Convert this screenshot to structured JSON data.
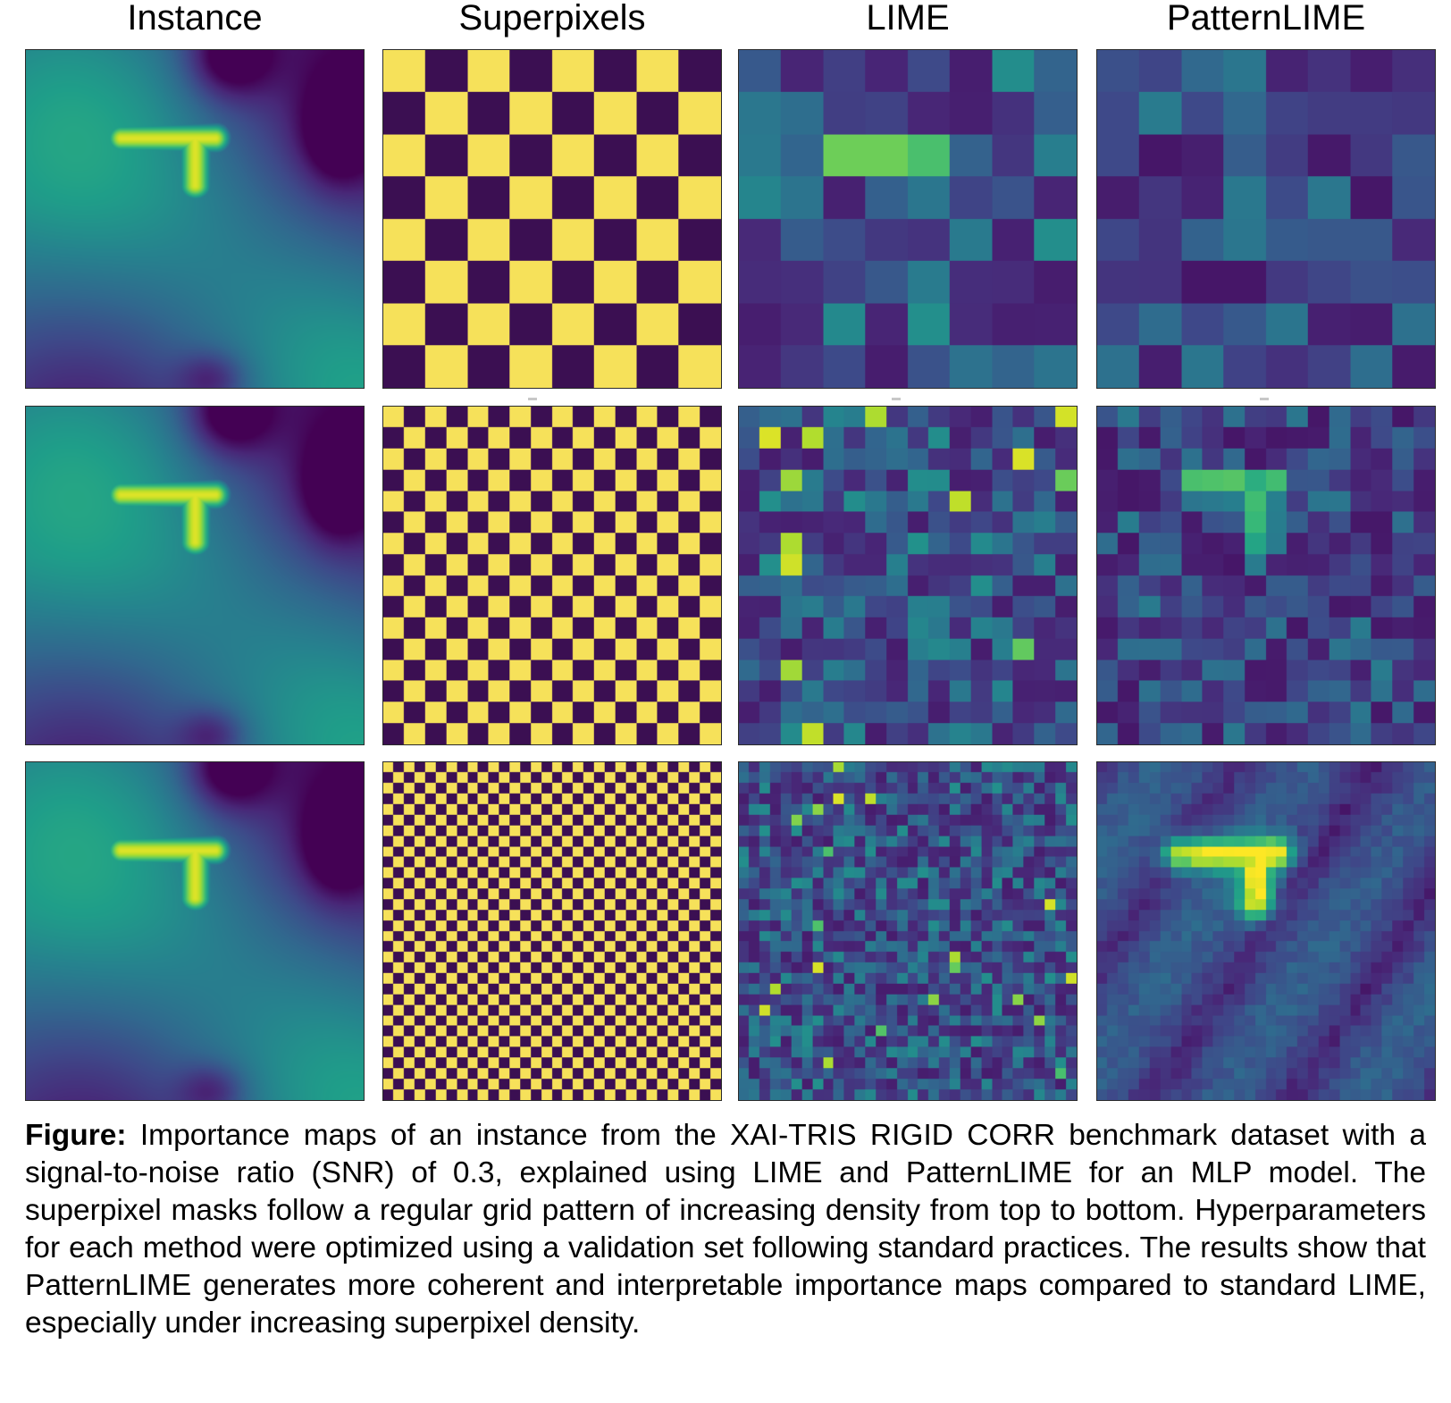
{
  "figure": {
    "column_headers": [
      "Instance",
      "Superpixels",
      "LIME",
      "PatternLIME"
    ],
    "rows": [
      {
        "superpixel_grid": 8,
        "lime_grid": 8,
        "patternlime_grid": 8
      },
      {
        "superpixel_grid": 16,
        "lime_grid": 16,
        "patternlime_grid": 16
      },
      {
        "superpixel_grid": 32,
        "lime_grid": 32,
        "patternlime_grid": 32
      }
    ],
    "colormap": "viridis"
  },
  "caption": {
    "label": "Figure:",
    "text": " Importance maps of an instance from the XAI-TRIS RIGID CORR benchmark dataset with a signal-to-noise ratio (SNR) of 0.3, explained using LIME and PatternLIME for an MLP model. The superpixel masks follow a regular grid pattern of increasing density from top to bottom. Hyperparameters for each method were optimized using a validation set following standard practices. The results show that PatternLIME generates more coherent and interpretable importance maps compared to standard LIME, especially under increasing superpixel density."
  }
}
